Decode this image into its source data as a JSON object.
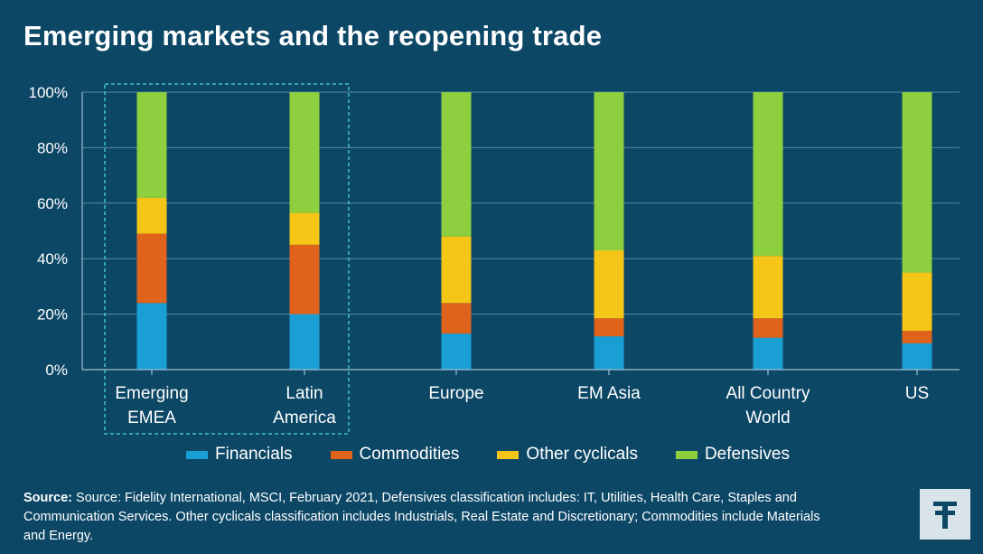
{
  "title": "Emerging markets and the reopening trade",
  "chart_data": {
    "type": "bar",
    "stacked": true,
    "categories": [
      [
        "Emerging",
        "EMEA"
      ],
      [
        "Latin",
        "America"
      ],
      [
        "Europe"
      ],
      [
        "EM Asia"
      ],
      [
        "All Country",
        "World"
      ],
      [
        "US"
      ]
    ],
    "series": [
      {
        "name": "Financials",
        "color": "#1a9fd5",
        "values": [
          24,
          20,
          13,
          12,
          11.5,
          9.5
        ]
      },
      {
        "name": "Commodities",
        "color": "#e0631c",
        "values": [
          25,
          25,
          11,
          6.5,
          7,
          4.5
        ]
      },
      {
        "name": "Other cyclicals",
        "color": "#f5c518",
        "values": [
          13,
          11.5,
          24,
          24.5,
          22.5,
          21
        ]
      },
      {
        "name": "Defensives",
        "color": "#8dcf3f",
        "values": [
          38,
          43.5,
          52,
          57,
          59,
          65
        ]
      }
    ],
    "yticks": [
      "0%",
      "20%",
      "40%",
      "60%",
      "80%",
      "100%"
    ],
    "ylim": [
      0,
      100
    ],
    "grid": true,
    "legend": "bottom",
    "highlight_categories": [
      0,
      1
    ]
  },
  "source": {
    "label": "Source:",
    "text": "Source: Fidelity International, MSCI, February 2021, Defensives classification includes: IT, Utilities, Health Care, Staples and Communication Services. Other cyclicals classification includes Industrials, Real Estate and Discretionary; Commodities include Materials and Energy."
  },
  "logo": {
    "icon": "fidelity-f-icon",
    "color": "#0c4766"
  }
}
